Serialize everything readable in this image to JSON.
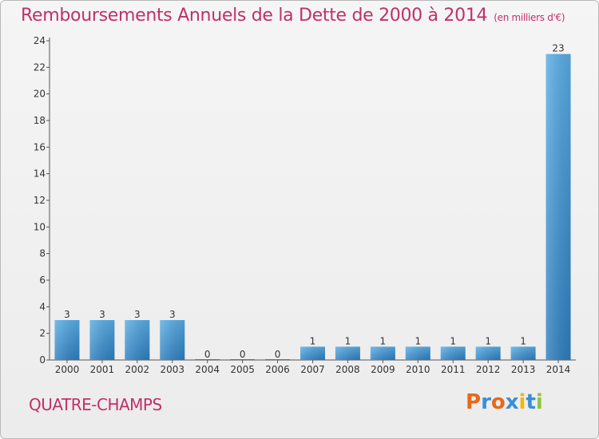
{
  "header": {
    "title": "Remboursements Annuels de la Dette de 2000 à 2014",
    "unit": "(en milliers d'€)"
  },
  "footer": {
    "commune": "QUATRE-CHAMPS",
    "logo": "Proxiti",
    "logo_colors": [
      "#e8681a",
      "#3a8fd4",
      "#e8681a",
      "#3a8fd4",
      "#f2b705",
      "#3a8fd4",
      "#8dc63f"
    ]
  },
  "chart_data": {
    "type": "bar",
    "categories": [
      "2000",
      "2001",
      "2002",
      "2003",
      "2004",
      "2005",
      "2006",
      "2007",
      "2008",
      "2009",
      "2010",
      "2011",
      "2012",
      "2013",
      "2014"
    ],
    "values": [
      3,
      3,
      3,
      3,
      0,
      0,
      0,
      1,
      1,
      1,
      1,
      1,
      1,
      1,
      23
    ],
    "data_labels": [
      "3",
      "3",
      "3",
      "3",
      "0",
      "0",
      "0",
      "1",
      "1",
      "1",
      "1",
      "1",
      "1",
      "1",
      "23"
    ],
    "ylim": [
      0,
      24
    ],
    "yticks": [
      0,
      2,
      4,
      6,
      8,
      10,
      12,
      14,
      16,
      18,
      20,
      22,
      24
    ],
    "grid": false,
    "bar_color_top": "#5aaee6",
    "bar_color_bottom": "#2e7fc0"
  }
}
